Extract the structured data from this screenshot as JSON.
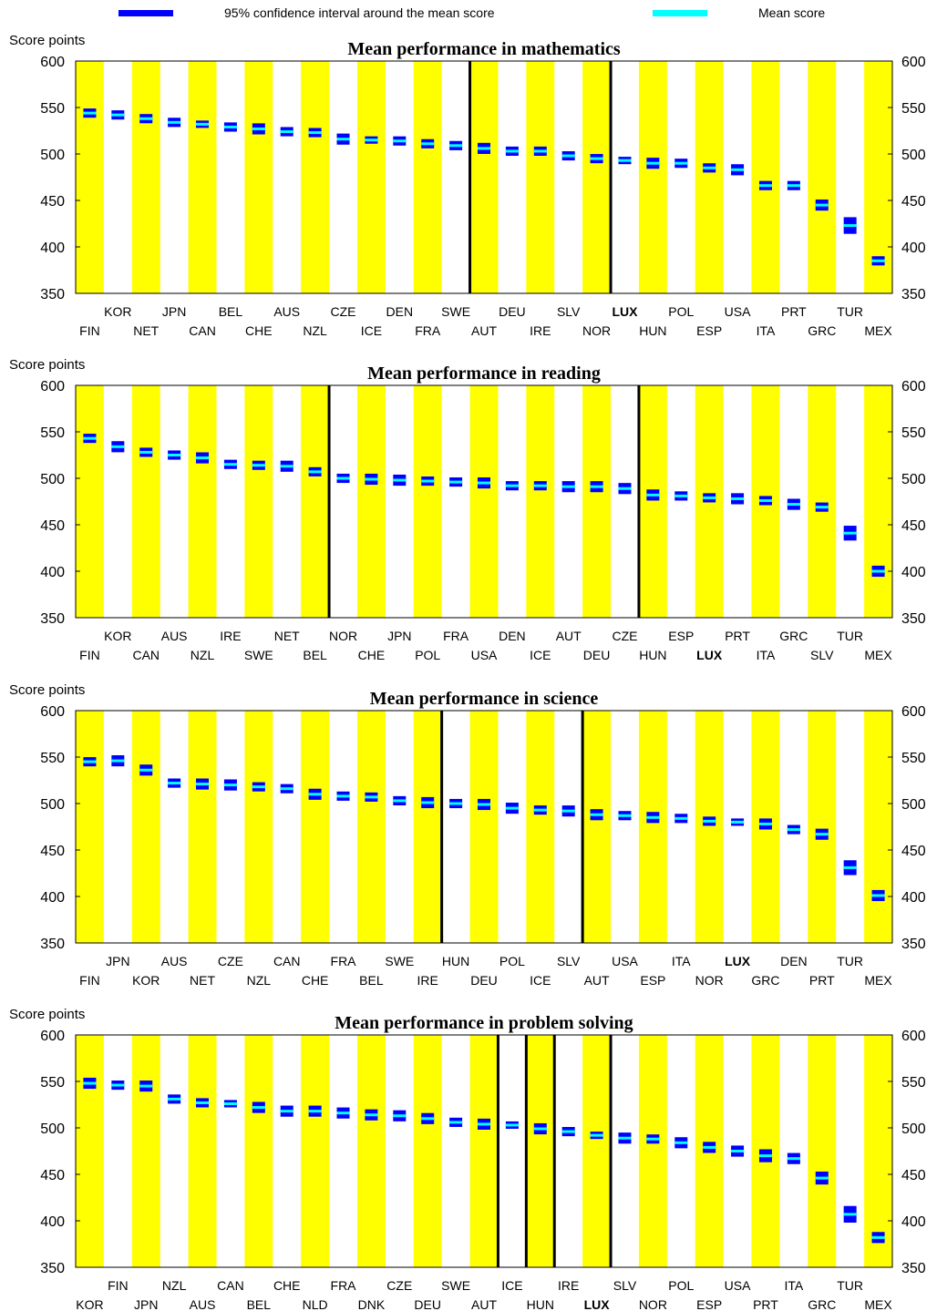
{
  "legend": {
    "ci_label": "95% confidence interval around the mean score",
    "mean_label": "Mean score",
    "ci_color": "#0000ff",
    "mean_color": "#00ffff"
  },
  "colors": {
    "band": "#ffff00",
    "ci": "#0000ff",
    "mean": "#00ffff",
    "highlight_label": "LUX"
  },
  "chart_data": [
    {
      "type": "dot-interval",
      "title": "Mean performance in mathematics",
      "ylabel": "Score points",
      "ylim": [
        350,
        600
      ],
      "yticks": [
        350,
        400,
        450,
        500,
        550,
        600
      ],
      "categories": [
        "FIN",
        "KOR",
        "NET",
        "JPN",
        "CAN",
        "BEL",
        "CHE",
        "AUS",
        "NZL",
        "CZE",
        "ICE",
        "DEN",
        "FRA",
        "SWE",
        "AUT",
        "DEU",
        "IRE",
        "SLV",
        "NOR",
        "LUX",
        "HUN",
        "POL",
        "ESP",
        "USA",
        "ITA",
        "PRT",
        "GRC",
        "TUR",
        "MEX"
      ],
      "mean": [
        544,
        542,
        538,
        534,
        532,
        529,
        527,
        524,
        523,
        516,
        515,
        514,
        511,
        509,
        506,
        503,
        503,
        498,
        495,
        493,
        490,
        490,
        485,
        483,
        466,
        466,
        445,
        423,
        385
      ],
      "ci_low": [
        541,
        539,
        535,
        531,
        530,
        526,
        523,
        521,
        520,
        512,
        513,
        511,
        508,
        506,
        502,
        500,
        500,
        495,
        492,
        491,
        486,
        487,
        482,
        479,
        463,
        463,
        441,
        416,
        382
      ],
      "ci_high": [
        547,
        545,
        541,
        537,
        534,
        532,
        531,
        527,
        526,
        520,
        517,
        517,
        514,
        512,
        510,
        506,
        506,
        501,
        498,
        495,
        494,
        493,
        488,
        487,
        469,
        469,
        449,
        430,
        388
      ],
      "dividers_after": [
        13,
        18
      ]
    },
    {
      "type": "dot-interval",
      "title": "Mean performance in reading",
      "ylabel": "Score points",
      "ylim": [
        350,
        600
      ],
      "yticks": [
        350,
        400,
        450,
        500,
        550,
        600
      ],
      "categories": [
        "FIN",
        "KOR",
        "CAN",
        "AUS",
        "NZL",
        "IRE",
        "SWE",
        "NET",
        "BEL",
        "NOR",
        "CHE",
        "JPN",
        "POL",
        "FRA",
        "USA",
        "DEN",
        "ICE",
        "AUT",
        "DEU",
        "CZE",
        "HUN",
        "ESP",
        "LUX",
        "PRT",
        "ITA",
        "GRC",
        "SLV",
        "TUR",
        "MEX"
      ],
      "mean": [
        543,
        534,
        528,
        525,
        522,
        515,
        514,
        513,
        507,
        500,
        499,
        498,
        497,
        496,
        495,
        492,
        492,
        491,
        491,
        489,
        482,
        481,
        479,
        478,
        476,
        472,
        469,
        441,
        400
      ],
      "ci_low": [
        540,
        530,
        525,
        522,
        518,
        512,
        511,
        509,
        504,
        497,
        495,
        494,
        494,
        493,
        491,
        489,
        489,
        487,
        487,
        485,
        478,
        478,
        476,
        474,
        473,
        468,
        466,
        435,
        396
      ],
      "ci_high": [
        546,
        538,
        531,
        528,
        526,
        518,
        517,
        517,
        510,
        503,
        503,
        502,
        500,
        499,
        499,
        495,
        495,
        495,
        495,
        493,
        486,
        484,
        482,
        482,
        479,
        476,
        472,
        447,
        404
      ],
      "dividers_after": [
        8,
        19
      ]
    },
    {
      "type": "dot-interval",
      "title": "Mean performance in science",
      "ylabel": "Score points",
      "ylim": [
        350,
        600
      ],
      "yticks": [
        350,
        400,
        450,
        500,
        550,
        600
      ],
      "categories": [
        "FIN",
        "JPN",
        "KOR",
        "AUS",
        "NET",
        "CZE",
        "NZL",
        "CAN",
        "CHE",
        "FRA",
        "BEL",
        "SWE",
        "IRE",
        "HUN",
        "DEU",
        "POL",
        "ICE",
        "SLV",
        "AUT",
        "USA",
        "ESP",
        "ITA",
        "NOR",
        "LUX",
        "GRC",
        "DEN",
        "PRT",
        "TUR",
        "MEX"
      ],
      "mean": [
        545,
        546,
        536,
        522,
        521,
        520,
        518,
        516,
        510,
        508,
        507,
        503,
        501,
        500,
        499,
        495,
        493,
        492,
        488,
        487,
        485,
        484,
        481,
        480,
        478,
        472,
        467,
        431,
        401
      ],
      "ci_low": [
        542,
        542,
        532,
        519,
        517,
        516,
        515,
        513,
        506,
        505,
        504,
        500,
        497,
        497,
        495,
        491,
        490,
        488,
        484,
        484,
        481,
        481,
        478,
        478,
        474,
        469,
        463,
        425,
        397
      ],
      "ci_high": [
        548,
        550,
        540,
        525,
        525,
        524,
        521,
        519,
        514,
        511,
        510,
        506,
        505,
        503,
        503,
        499,
        496,
        496,
        492,
        490,
        489,
        487,
        484,
        482,
        482,
        475,
        471,
        437,
        405
      ],
      "dividers_after": [
        12,
        17
      ]
    },
    {
      "type": "dot-interval",
      "title": "Mean performance in problem solving",
      "ylabel": "Score points",
      "ylim": [
        350,
        600
      ],
      "yticks": [
        350,
        400,
        450,
        500,
        550,
        600
      ],
      "categories": [
        "KOR",
        "FIN",
        "JPN",
        "NZL",
        "AUS",
        "CAN",
        "BEL",
        "CHE",
        "NLD",
        "FRA",
        "DNK",
        "CZE",
        "DEU",
        "SWE",
        "AUT",
        "ICE",
        "HUN",
        "IRE",
        "LUX",
        "SLV",
        "NOR",
        "POL",
        "ESP",
        "USA",
        "PRT",
        "ITA",
        "GRC",
        "TUR",
        "MEX"
      ],
      "mean": [
        548,
        546,
        545,
        531,
        527,
        526,
        522,
        518,
        518,
        516,
        514,
        513,
        510,
        506,
        504,
        503,
        499,
        496,
        492,
        489,
        488,
        484,
        479,
        475,
        470,
        467,
        446,
        407,
        382
      ],
      "ci_low": [
        544,
        543,
        541,
        528,
        524,
        524,
        518,
        514,
        514,
        512,
        510,
        509,
        506,
        503,
        500,
        501,
        495,
        493,
        490,
        485,
        485,
        480,
        475,
        471,
        465,
        463,
        441,
        400,
        378
      ],
      "ci_high": [
        552,
        549,
        549,
        534,
        530,
        528,
        526,
        522,
        522,
        520,
        518,
        517,
        514,
        509,
        508,
        505,
        503,
        499,
        494,
        493,
        491,
        488,
        483,
        479,
        475,
        471,
        451,
        414,
        386
      ],
      "dividers_after": [
        14,
        15,
        16,
        18
      ]
    }
  ]
}
